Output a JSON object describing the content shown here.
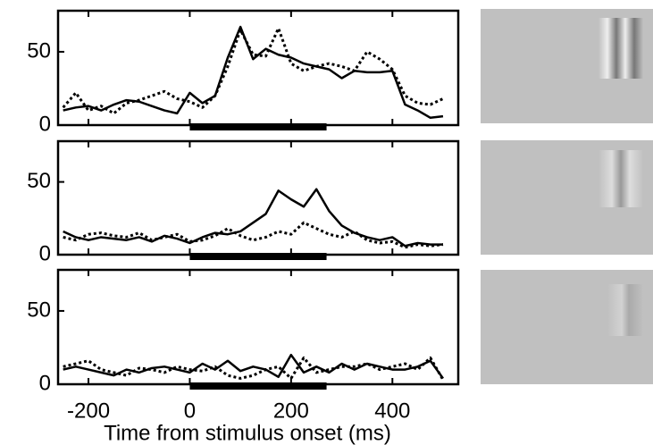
{
  "chart_data": [
    {
      "type": "line",
      "xlim": [
        -260,
        530
      ],
      "ylim": [
        0,
        78
      ],
      "xticks": [
        -200,
        0,
        200,
        400
      ],
      "yticks": [
        0,
        50
      ],
      "stimulus": [
        0,
        270
      ],
      "x": [
        -250,
        -225,
        -200,
        -175,
        -150,
        -125,
        -100,
        -75,
        -50,
        -25,
        0,
        25,
        50,
        75,
        100,
        125,
        150,
        175,
        200,
        225,
        250,
        275,
        300,
        325,
        350,
        375,
        400,
        425,
        450,
        475,
        500
      ],
      "series": [
        {
          "color": "#000",
          "style": "solid",
          "values": [
            10,
            12,
            13,
            10,
            14,
            17,
            16,
            13,
            10,
            8,
            22,
            15,
            20,
            46,
            67,
            45,
            52,
            48,
            46,
            42,
            40,
            38,
            32,
            37,
            36,
            36,
            37,
            14,
            10,
            5,
            6
          ]
        },
        {
          "color": "#000",
          "style": "dotted",
          "values": [
            12,
            22,
            10,
            13,
            8,
            15,
            17,
            20,
            23,
            18,
            16,
            12,
            20,
            40,
            65,
            48,
            47,
            66,
            42,
            37,
            40,
            42,
            40,
            37,
            50,
            45,
            38,
            20,
            15,
            14,
            18
          ]
        }
      ]
    },
    {
      "type": "line",
      "xlim": [
        -260,
        530
      ],
      "ylim": [
        0,
        78
      ],
      "xticks": [
        -200,
        0,
        200,
        400
      ],
      "yticks": [
        0,
        50
      ],
      "stimulus": [
        0,
        270
      ],
      "x": [
        -250,
        -225,
        -200,
        -175,
        -150,
        -125,
        -100,
        -75,
        -50,
        -25,
        0,
        25,
        50,
        75,
        100,
        125,
        150,
        175,
        200,
        225,
        250,
        275,
        300,
        325,
        350,
        375,
        400,
        425,
        450,
        475,
        500
      ],
      "series": [
        {
          "color": "#000",
          "style": "solid",
          "values": [
            16,
            12,
            10,
            12,
            11,
            10,
            12,
            9,
            13,
            11,
            8,
            12,
            15,
            14,
            16,
            22,
            28,
            44,
            38,
            33,
            45,
            30,
            20,
            15,
            12,
            10,
            12,
            6,
            8,
            7,
            7
          ]
        },
        {
          "color": "#000",
          "style": "dotted",
          "values": [
            12,
            10,
            14,
            15,
            13,
            12,
            15,
            10,
            12,
            14,
            9,
            10,
            13,
            18,
            13,
            10,
            12,
            16,
            14,
            22,
            18,
            14,
            12,
            16,
            10,
            8,
            9,
            5,
            7,
            6,
            7
          ]
        }
      ]
    },
    {
      "type": "line",
      "xlim": [
        -260,
        530
      ],
      "ylim": [
        0,
        78
      ],
      "xticks": [
        -200,
        0,
        200,
        400
      ],
      "yticks": [
        0,
        50
      ],
      "stimulus": [
        0,
        270
      ],
      "xlabel": "Time from  stimulus  onset (ms)",
      "x": [
        -250,
        -225,
        -200,
        -175,
        -150,
        -125,
        -100,
        -75,
        -50,
        -25,
        0,
        25,
        50,
        75,
        100,
        125,
        150,
        175,
        200,
        225,
        250,
        275,
        300,
        325,
        350,
        375,
        400,
        425,
        450,
        475,
        500
      ],
      "series": [
        {
          "color": "#000",
          "style": "solid",
          "values": [
            10,
            12,
            10,
            8,
            6,
            10,
            8,
            11,
            12,
            10,
            8,
            14,
            10,
            16,
            9,
            12,
            10,
            5,
            20,
            8,
            12,
            8,
            14,
            10,
            14,
            12,
            10,
            10,
            12,
            16,
            4
          ]
        },
        {
          "color": "#000",
          "style": "dotted",
          "values": [
            12,
            14,
            16,
            10,
            8,
            6,
            11,
            10,
            8,
            12,
            10,
            9,
            12,
            6,
            4,
            6,
            10,
            12,
            4,
            18,
            8,
            10,
            12,
            12,
            14,
            10,
            12,
            14,
            10,
            18,
            3
          ]
        }
      ]
    }
  ]
}
